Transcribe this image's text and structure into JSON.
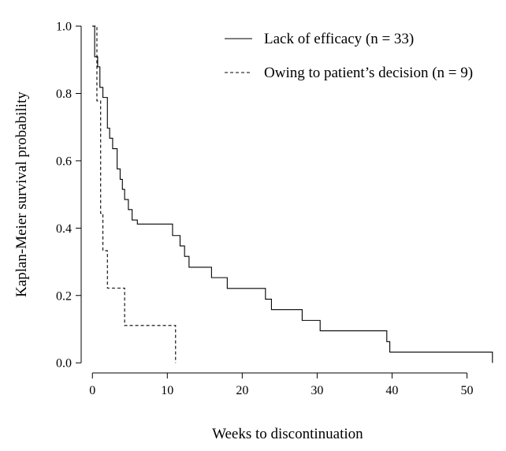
{
  "chart_data": {
    "type": "line",
    "step": true,
    "xlabel": "Weeks to discontinuation",
    "ylabel": "Kaplan-Meier survival probability",
    "xlim": [
      -1.5,
      55
    ],
    "ylim": [
      -0.03,
      1.04
    ],
    "xticks": [
      0,
      10,
      20,
      30,
      40,
      50
    ],
    "yticks": [
      0.0,
      0.2,
      0.4,
      0.6,
      0.8,
      1.0
    ],
    "xtick_labels": [
      "0",
      "10",
      "20",
      "30",
      "40",
      "50"
    ],
    "ytick_labels": [
      "0.0",
      "0.2",
      "0.4",
      "0.6",
      "0.8",
      "1.0"
    ],
    "grid": false,
    "legend_position": "top-right",
    "series": [
      {
        "name": "Lack of efficacy (n = 33)",
        "color": "#000000",
        "dash": "solid",
        "x": [
          0,
          0.3,
          0.7,
          1.0,
          1.4,
          2.0,
          2.3,
          2.7,
          3.3,
          3.7,
          4.0,
          4.3,
          4.8,
          5.3,
          6.0,
          10.7,
          11.7,
          12.3,
          12.9,
          15.9,
          18.0,
          23.1,
          23.9,
          28.0,
          30.4,
          39.3,
          39.7,
          40.0,
          53.4
        ],
        "y": [
          1.0,
          0.909,
          0.879,
          0.818,
          0.788,
          0.697,
          0.667,
          0.636,
          0.576,
          0.545,
          0.515,
          0.485,
          0.455,
          0.424,
          0.412,
          0.378,
          0.347,
          0.316,
          0.284,
          0.253,
          0.221,
          0.189,
          0.158,
          0.126,
          0.095,
          0.063,
          0.032,
          0.032,
          0.0
        ]
      },
      {
        "name": "Owing to patient’s decision (n = 9)",
        "color": "#000000",
        "dash": "dashed",
        "x": [
          0,
          0.6,
          1.1,
          1.4,
          2.0,
          4.3,
          11.1
        ],
        "y": [
          1.0,
          0.778,
          0.444,
          0.333,
          0.222,
          0.111,
          0.0
        ]
      }
    ]
  }
}
